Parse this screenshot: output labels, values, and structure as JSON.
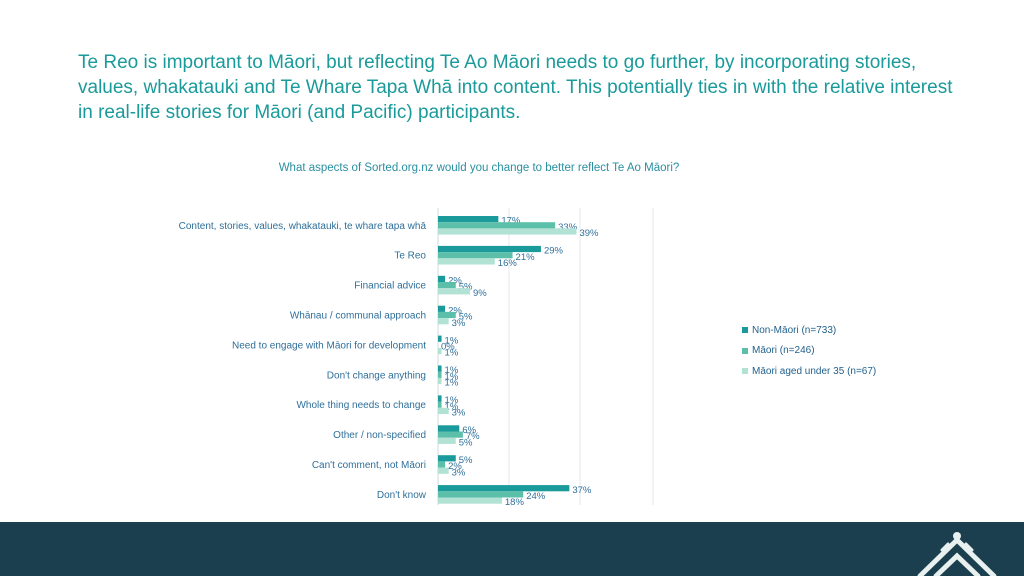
{
  "headline": "Te Reo is important to Māori, but reflecting Te Ao Māori needs to go further, by incorporating stories, values, whakatauki and Te Whare Tapa Whā into content.  This potentially ties in with the relative interest in real-life stories for Māori (and Pacific) participants.",
  "colors": {
    "headline": "#1a9a9a",
    "footer": "#1b3f4f",
    "series": [
      "#1a9a9a",
      "#5bbfa9",
      "#b2e2d4"
    ]
  },
  "chart_data": {
    "type": "bar",
    "orientation": "horizontal",
    "title": "What aspects of Sorted.org.nz would you change to better reflect Te Ao Māori?",
    "categories": [
      "Content, stories, values, whakatauki, te whare tapa whā",
      "Te Reo",
      "Financial advice",
      "Whānau  / communal approach",
      "Need to engage with Māori for development",
      "Don't change anything",
      "Whole thing needs to change",
      "Other / non-specified",
      "Can't comment, not Māori",
      "Don't know"
    ],
    "series": [
      {
        "name": "Non-Māori (n=733)",
        "values": [
          17,
          29,
          2,
          2,
          1,
          1,
          1,
          6,
          5,
          37
        ]
      },
      {
        "name": "Māori (n=246)",
        "values": [
          33,
          21,
          5,
          5,
          0,
          1,
          1,
          7,
          2,
          24
        ]
      },
      {
        "name": "Māori aged under 35 (n=67)",
        "values": [
          39,
          16,
          9,
          3,
          1,
          1,
          3,
          5,
          3,
          18
        ]
      }
    ],
    "value_suffix": "%",
    "xlim": [
      0,
      60
    ],
    "grid": true,
    "legend_position": "right"
  }
}
